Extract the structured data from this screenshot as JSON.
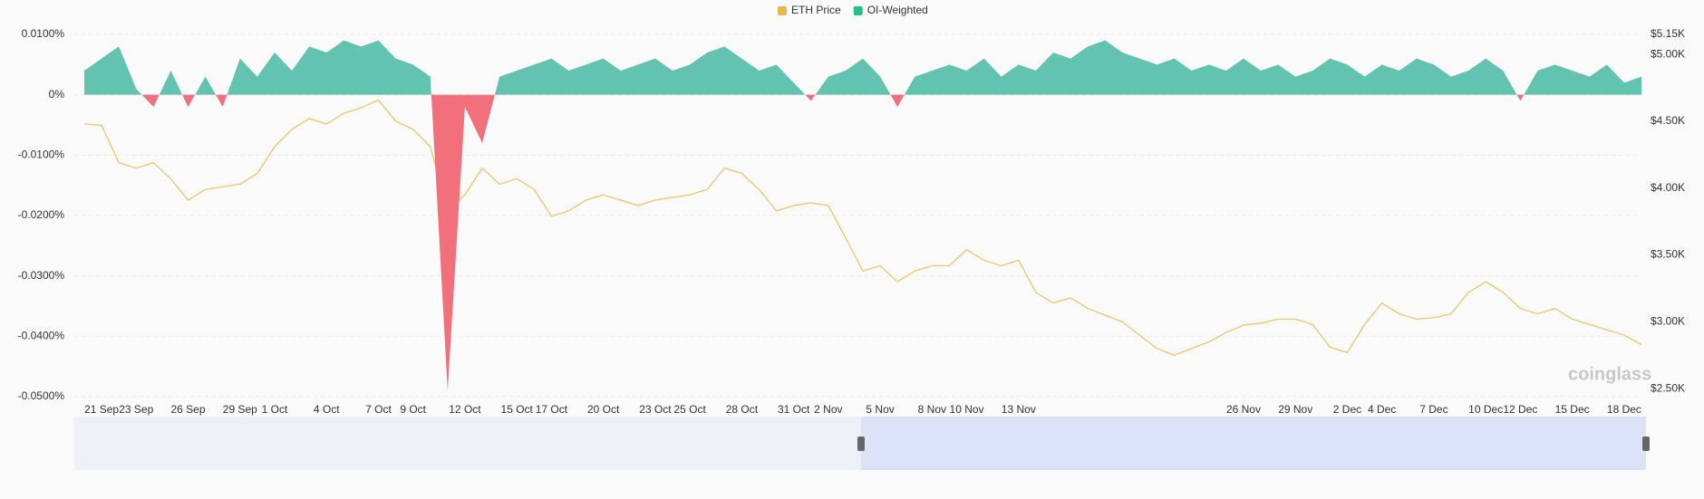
{
  "chart_data": {
    "type": "combo",
    "watermark": "coinglass",
    "categories": [
      null,
      "21 Sep",
      null,
      "23 Sep",
      null,
      null,
      "26 Sep",
      null,
      null,
      "29 Sep",
      null,
      "1 Oct",
      null,
      null,
      "4 Oct",
      null,
      null,
      "7 Oct",
      null,
      "9 Oct",
      null,
      null,
      "12 Oct",
      null,
      null,
      "15 Oct",
      null,
      "17 Oct",
      null,
      null,
      "20 Oct",
      null,
      null,
      "23 Oct",
      null,
      "25 Oct",
      null,
      null,
      "28 Oct",
      null,
      null,
      "31 Oct",
      null,
      "2 Nov",
      null,
      null,
      "5 Nov",
      null,
      null,
      "8 Nov",
      null,
      "10 Nov",
      null,
      null,
      "13 Nov",
      null,
      null,
      null,
      null,
      null,
      null,
      null,
      null,
      null,
      null,
      null,
      null,
      "26 Nov",
      null,
      null,
      "29 Nov",
      null,
      null,
      "2 Dec",
      null,
      "4 Dec",
      null,
      null,
      "7 Dec",
      null,
      null,
      "10 Dec",
      null,
      "12 Dec",
      null,
      null,
      "15 Dec",
      null,
      null,
      "18 Dec",
      null
    ],
    "series": [
      {
        "name": "ETH Price",
        "type": "line",
        "axis": "y2",
        "color": "#f0c46a",
        "legend_color": "#e8b84a",
        "values": [
          4480,
          4470,
          4190,
          4150,
          4190,
          4070,
          3910,
          3990,
          4010,
          4030,
          4110,
          4310,
          4440,
          4520,
          4480,
          4560,
          4600,
          4660,
          4500,
          4440,
          4310,
          3830,
          3950,
          4150,
          4030,
          4070,
          3990,
          3790,
          3830,
          3910,
          3950,
          3910,
          3870,
          3910,
          3930,
          3950,
          3990,
          4150,
          4110,
          3990,
          3830,
          3870,
          3890,
          3870,
          3630,
          3380,
          3420,
          3300,
          3380,
          3420,
          3420,
          3540,
          3460,
          3420,
          3460,
          3220,
          3140,
          3180,
          3100,
          3050,
          3000,
          2900,
          2800,
          2750,
          2800,
          2850,
          2920,
          2975,
          2990,
          3020,
          3020,
          2980,
          2810,
          2770,
          2980,
          3140,
          3060,
          3020,
          3030,
          3060,
          3220,
          3300,
          3220,
          3100,
          3060,
          3100,
          3020,
          2980,
          2940,
          2900,
          2830
        ]
      },
      {
        "name": "OI-Weighted",
        "type": "area",
        "axis": "y",
        "color": "#62c4b0",
        "negative_color": "#f2707c",
        "legend_color": "#22c08a",
        "values": [
          0.004,
          0.006,
          0.008,
          0.001,
          -0.002,
          0.004,
          -0.002,
          0.003,
          -0.002,
          0.006,
          0.003,
          0.007,
          0.004,
          0.008,
          0.007,
          0.009,
          0.008,
          0.009,
          0.006,
          0.005,
          0.003,
          -0.049,
          -0.002,
          -0.008,
          0.003,
          0.004,
          0.005,
          0.006,
          0.004,
          0.005,
          0.006,
          0.004,
          0.005,
          0.006,
          0.004,
          0.005,
          0.007,
          0.008,
          0.006,
          0.004,
          0.005,
          0.002,
          -0.001,
          0.003,
          0.004,
          0.006,
          0.003,
          -0.002,
          0.003,
          0.004,
          0.005,
          0.004,
          0.006,
          0.003,
          0.005,
          0.004,
          0.007,
          0.006,
          0.008,
          0.009,
          0.007,
          0.006,
          0.005,
          0.006,
          0.004,
          0.005,
          0.004,
          0.006,
          0.004,
          0.005,
          0.003,
          0.004,
          0.006,
          0.005,
          0.003,
          0.005,
          0.004,
          0.006,
          0.005,
          0.003,
          0.004,
          0.006,
          0.004,
          -0.001,
          0.004,
          0.005,
          0.004,
          0.003,
          0.005,
          0.002,
          0.003
        ]
      }
    ],
    "ylim": [
      -0.05,
      0.01
    ],
    "yticks": [
      {
        "value": 0.01,
        "label": "0.0100%"
      },
      {
        "value": 0,
        "label": "0%"
      },
      {
        "value": -0.01,
        "label": "-0.0100%"
      },
      {
        "value": -0.02,
        "label": "-0.0200%"
      },
      {
        "value": -0.03,
        "label": "-0.0300%"
      },
      {
        "value": -0.04,
        "label": "-0.0400%"
      },
      {
        "value": -0.05,
        "label": "-0.0500%"
      }
    ],
    "y2lim": [
      2440,
      5150
    ],
    "y2ticks": [
      {
        "value": 5150,
        "label": "$5.15K"
      },
      {
        "value": 5000,
        "label": "$5.00K"
      },
      {
        "value": 4500,
        "label": "$4.50K"
      },
      {
        "value": 4000,
        "label": "$4.00K"
      },
      {
        "value": 3500,
        "label": "$3.50K"
      },
      {
        "value": 3000,
        "label": "$3.00K"
      },
      {
        "value": 2500,
        "label": "$2.50K"
      }
    ],
    "grid": true,
    "legend": "top"
  }
}
